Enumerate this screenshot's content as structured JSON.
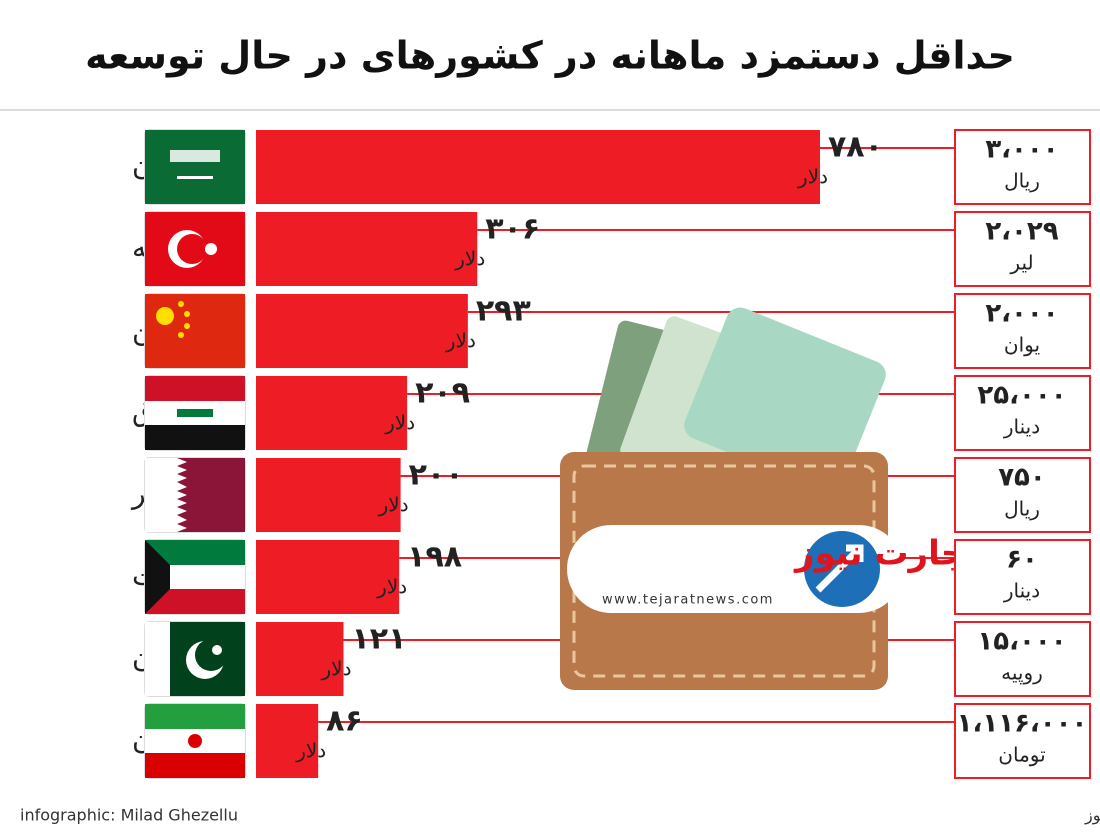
{
  "chart_data": {
    "type": "bar",
    "orientation": "horizontal",
    "title": "حداقل دستمزد ماهانه در کشورهای در حال توسعه",
    "categories": [
      "عربستان",
      "ترکیه",
      "چین",
      "عراق",
      "قطر",
      "کویت",
      "پاکستان",
      "ایران"
    ],
    "values": [
      780,
      306,
      293,
      209,
      200,
      198,
      121,
      86
    ],
    "value_labels": [
      "۷۸۰",
      "۳۰۶",
      "۲۹۳",
      "۲۰۹",
      "۲۰۰",
      "۱۹۸",
      "۱۲۱",
      "۸۶"
    ],
    "unit": "دلار",
    "color": "#ee1c25",
    "local_amounts": {
      "values": [
        3000,
        2029,
        2000,
        25000,
        750,
        60,
        15000,
        1116000
      ],
      "value_labels": [
        "۳،۰۰۰",
        "۲،۰۲۹",
        "۲،۰۰۰",
        "۲۵،۰۰۰",
        "۷۵۰",
        "۶۰",
        "۱۵،۰۰۰",
        "۱،۱۱۶،۰۰۰"
      ],
      "units": [
        "ریال",
        "لیر",
        "یوان",
        "دینار",
        "ریال",
        "دینار",
        "روپیه",
        "تومان"
      ]
    },
    "credit": "infographic: Milad Ghezellu",
    "source": "منبع: تجارت‌نیوز",
    "logo": {
      "name": "تجارت نیوز",
      "url": "www.tejaratnews.com"
    }
  }
}
